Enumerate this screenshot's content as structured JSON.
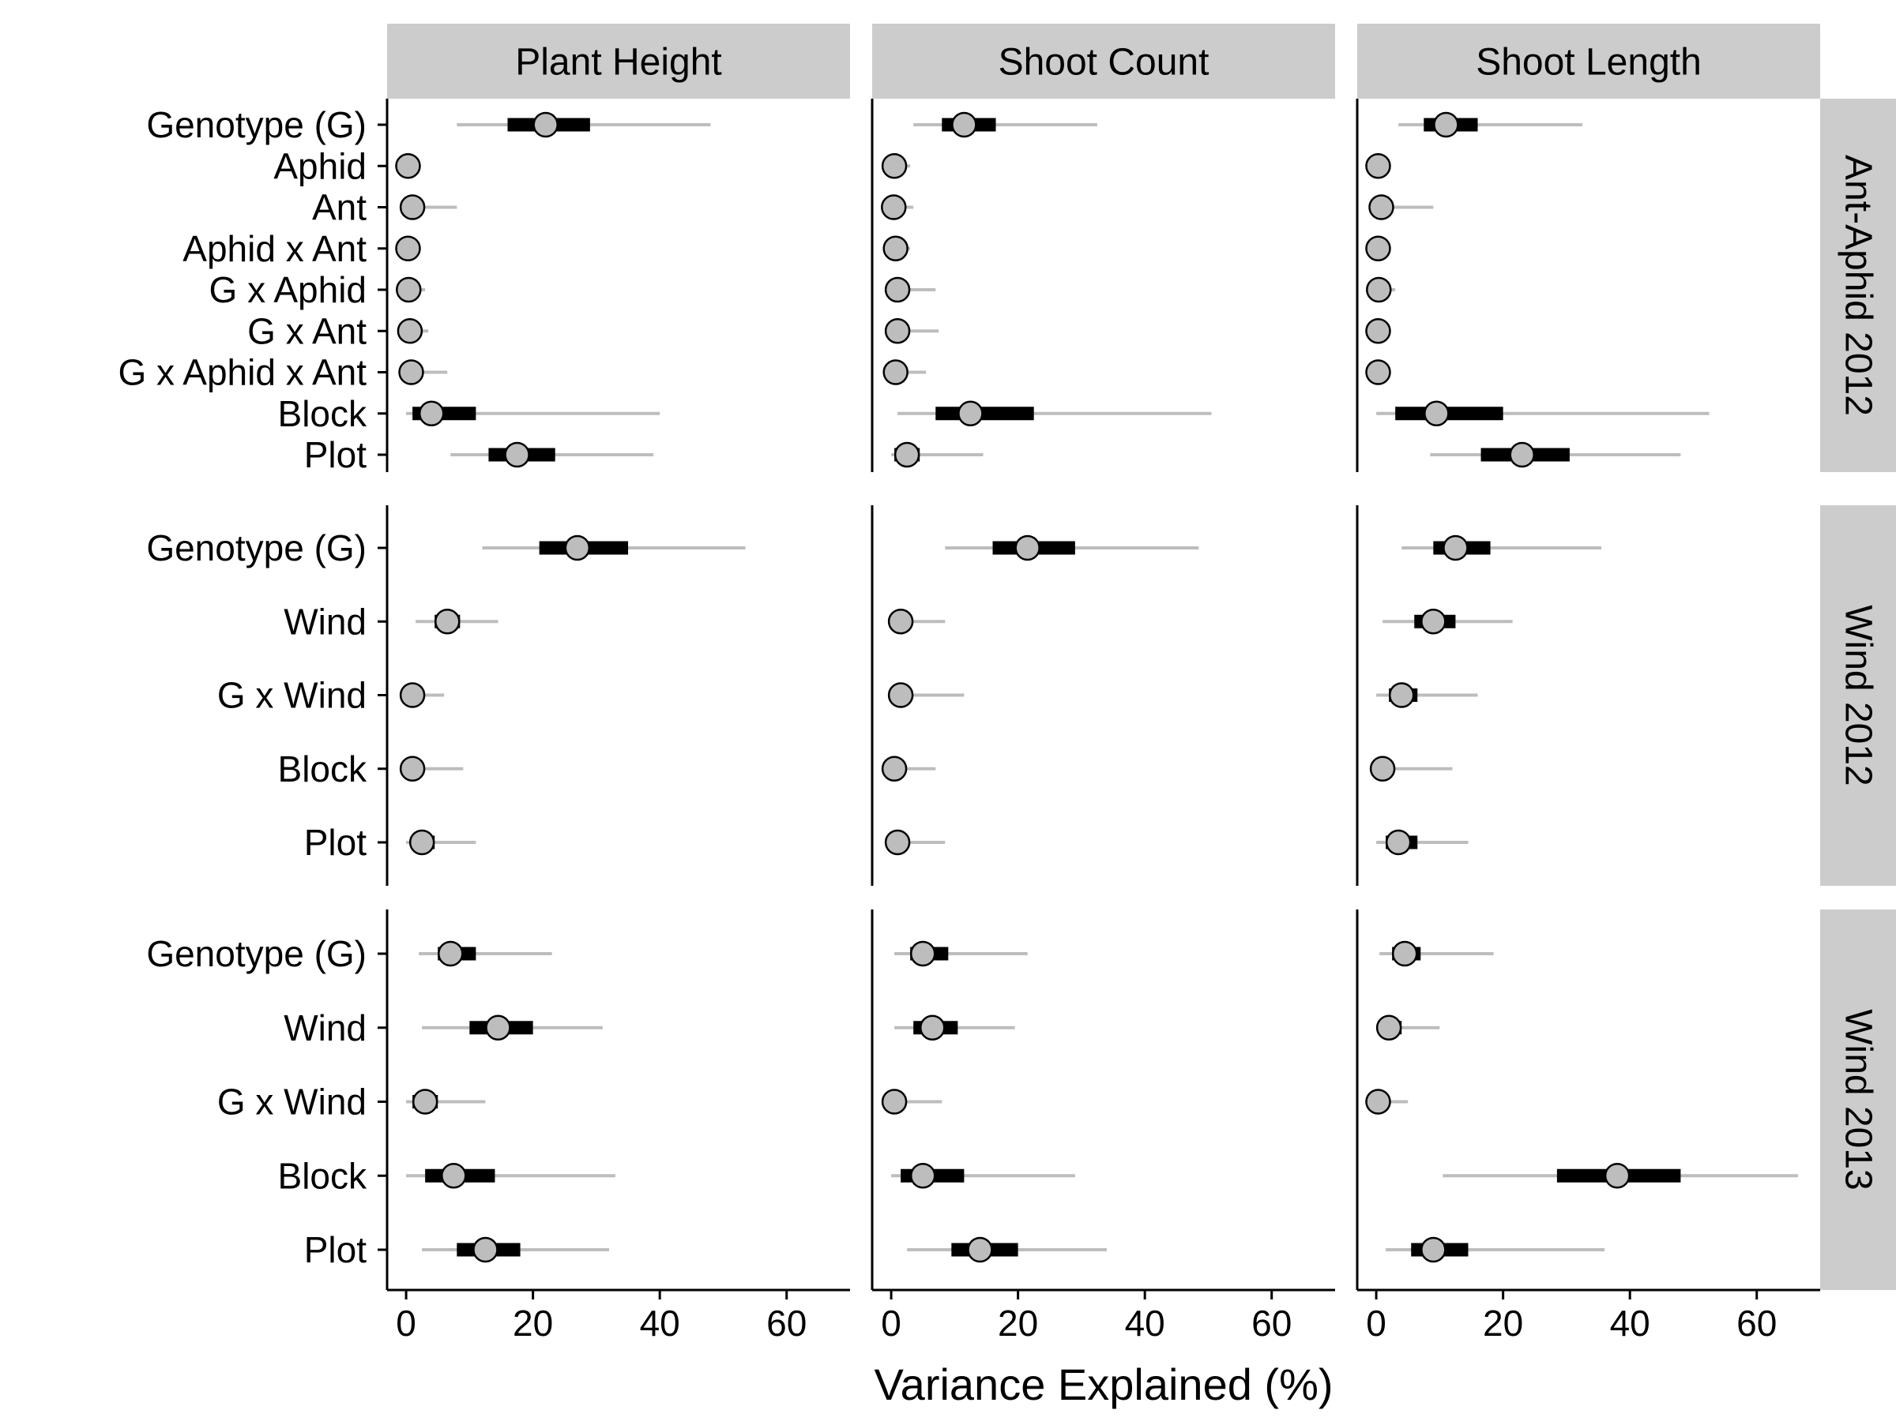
{
  "chart_data": {
    "type": "pointrange",
    "xlabel": "Variance Explained (%)",
    "xlim": [
      -3,
      70
    ],
    "x_ticks": [
      0,
      20,
      40,
      60
    ],
    "x_tick_labels": [
      "0",
      "20",
      "40",
      "60"
    ],
    "columns": [
      "Plant Height",
      "Shoot Count",
      "Shoot Length"
    ],
    "colors": {
      "point_fill": "#bdbdbd",
      "outer_interval": "#bdbdbd",
      "inner_interval": "#000000",
      "strip_bg": "#cccccc"
    },
    "panels_rows": [
      {
        "name": "Ant-Aphid 2012",
        "terms": [
          "Genotype (G)",
          "Aphid",
          "Ant",
          "Aphid x Ant",
          "G x Aphid",
          "G x Ant",
          "G x Aphid x Ant",
          "Block",
          "Plot"
        ],
        "data": {
          "Plant Height": [
            {
              "est": 22,
              "inner": [
                16,
                29
              ],
              "outer": [
                8,
                48
              ]
            },
            {
              "est": 0.3,
              "inner": [
                0,
                0.8
              ],
              "outer": [
                0,
                2
              ]
            },
            {
              "est": 1,
              "inner": [
                0,
                2
              ],
              "outer": [
                0,
                8
              ]
            },
            {
              "est": 0.3,
              "inner": [
                0,
                0.8
              ],
              "outer": [
                0,
                2
              ]
            },
            {
              "est": 0.4,
              "inner": [
                0,
                1
              ],
              "outer": [
                0,
                3
              ]
            },
            {
              "est": 0.6,
              "inner": [
                0,
                1.5
              ],
              "outer": [
                0,
                3.5
              ]
            },
            {
              "est": 0.8,
              "inner": [
                0,
                2
              ],
              "outer": [
                0,
                6.5
              ]
            },
            {
              "est": 4,
              "inner": [
                1,
                11
              ],
              "outer": [
                0,
                40
              ]
            },
            {
              "est": 17.5,
              "inner": [
                13,
                23.5
              ],
              "outer": [
                7,
                39
              ]
            }
          ],
          "Shoot Count": [
            {
              "est": 11.5,
              "inner": [
                8,
                16.5
              ],
              "outer": [
                3.5,
                32.5
              ]
            },
            {
              "est": 0.5,
              "inner": [
                0,
                1
              ],
              "outer": [
                0,
                3
              ]
            },
            {
              "est": 0.4,
              "inner": [
                0,
                1
              ],
              "outer": [
                0,
                3.5
              ]
            },
            {
              "est": 0.7,
              "inner": [
                0,
                1.5
              ],
              "outer": [
                0,
                3
              ]
            },
            {
              "est": 1,
              "inner": [
                0,
                2
              ],
              "outer": [
                0,
                7
              ]
            },
            {
              "est": 1,
              "inner": [
                0,
                2
              ],
              "outer": [
                0,
                7.5
              ]
            },
            {
              "est": 0.7,
              "inner": [
                0,
                1.5
              ],
              "outer": [
                0,
                5.5
              ]
            },
            {
              "est": 12.5,
              "inner": [
                7,
                22.5
              ],
              "outer": [
                1,
                50.5
              ]
            },
            {
              "est": 2.5,
              "inner": [
                0.5,
                4.5
              ],
              "outer": [
                0,
                14.5
              ]
            }
          ],
          "Shoot Length": [
            {
              "est": 11,
              "inner": [
                7.5,
                16
              ],
              "outer": [
                3.5,
                32.5
              ]
            },
            {
              "est": 0.3,
              "inner": [
                0,
                0.8
              ],
              "outer": [
                0,
                2
              ]
            },
            {
              "est": 0.8,
              "inner": [
                0,
                2
              ],
              "outer": [
                0,
                9
              ]
            },
            {
              "est": 0.3,
              "inner": [
                0,
                0.8
              ],
              "outer": [
                0,
                2
              ]
            },
            {
              "est": 0.4,
              "inner": [
                0,
                1
              ],
              "outer": [
                0,
                3
              ]
            },
            {
              "est": 0.3,
              "inner": [
                0,
                0.8
              ],
              "outer": [
                0,
                2
              ]
            },
            {
              "est": 0.3,
              "inner": [
                0,
                0.8
              ],
              "outer": [
                0,
                2
              ]
            },
            {
              "est": 9.5,
              "inner": [
                3,
                20
              ],
              "outer": [
                0,
                52.5
              ]
            },
            {
              "est": 23,
              "inner": [
                16.5,
                30.5
              ],
              "outer": [
                8.5,
                48
              ]
            }
          ]
        }
      },
      {
        "name": "Wind 2012",
        "terms": [
          "Genotype (G)",
          "Wind",
          "G x Wind",
          "Block",
          "Plot"
        ],
        "data": {
          "Plant Height": [
            {
              "est": 27,
              "inner": [
                21,
                35
              ],
              "outer": [
                12,
                53.5
              ]
            },
            {
              "est": 6.5,
              "inner": [
                4.5,
                8.5
              ],
              "outer": [
                1.5,
                14.5
              ]
            },
            {
              "est": 1,
              "inner": [
                0,
                2
              ],
              "outer": [
                0,
                6
              ]
            },
            {
              "est": 1,
              "inner": [
                0,
                2
              ],
              "outer": [
                0,
                9
              ]
            },
            {
              "est": 2.5,
              "inner": [
                1,
                4.5
              ],
              "outer": [
                0,
                11
              ]
            }
          ],
          "Shoot Count": [
            {
              "est": 21.5,
              "inner": [
                16,
                29
              ],
              "outer": [
                8.5,
                48.5
              ]
            },
            {
              "est": 1.5,
              "inner": [
                0.5,
                3
              ],
              "outer": [
                0,
                8.5
              ]
            },
            {
              "est": 1.5,
              "inner": [
                0.5,
                3
              ],
              "outer": [
                0,
                11.5
              ]
            },
            {
              "est": 0.5,
              "inner": [
                0,
                1.5
              ],
              "outer": [
                0,
                7
              ]
            },
            {
              "est": 1,
              "inner": [
                0,
                2
              ],
              "outer": [
                0,
                8.5
              ]
            }
          ],
          "Shoot Length": [
            {
              "est": 12.5,
              "inner": [
                9,
                18
              ],
              "outer": [
                4,
                35.5
              ]
            },
            {
              "est": 9,
              "inner": [
                6,
                12.5
              ],
              "outer": [
                1,
                21.5
              ]
            },
            {
              "est": 4,
              "inner": [
                2,
                6.5
              ],
              "outer": [
                0,
                16
              ]
            },
            {
              "est": 1,
              "inner": [
                0,
                2.5
              ],
              "outer": [
                0,
                12
              ]
            },
            {
              "est": 3.5,
              "inner": [
                1.5,
                6.5
              ],
              "outer": [
                0,
                14.5
              ]
            }
          ]
        }
      },
      {
        "name": "Wind 2013",
        "terms": [
          "Genotype (G)",
          "Wind",
          "G x Wind",
          "Block",
          "Plot"
        ],
        "data": {
          "Plant Height": [
            {
              "est": 7,
              "inner": [
                5,
                11
              ],
              "outer": [
                2,
                23
              ]
            },
            {
              "est": 14.5,
              "inner": [
                10,
                20
              ],
              "outer": [
                2.5,
                31
              ]
            },
            {
              "est": 3,
              "inner": [
                1,
                5
              ],
              "outer": [
                0,
                12.5
              ]
            },
            {
              "est": 7.5,
              "inner": [
                3,
                14
              ],
              "outer": [
                0,
                33
              ]
            },
            {
              "est": 12.5,
              "inner": [
                8,
                18
              ],
              "outer": [
                2.5,
                32
              ]
            }
          ],
          "Shoot Count": [
            {
              "est": 5,
              "inner": [
                3,
                9
              ],
              "outer": [
                0.5,
                21.5
              ]
            },
            {
              "est": 6.5,
              "inner": [
                3.5,
                10.5
              ],
              "outer": [
                0.5,
                19.5
              ]
            },
            {
              "est": 0.5,
              "inner": [
                0,
                2
              ],
              "outer": [
                0,
                8
              ]
            },
            {
              "est": 5,
              "inner": [
                1.5,
                11.5
              ],
              "outer": [
                0,
                29
              ]
            },
            {
              "est": 14,
              "inner": [
                9.5,
                20
              ],
              "outer": [
                2.5,
                34
              ]
            }
          ],
          "Shoot Length": [
            {
              "est": 4.5,
              "inner": [
                2.5,
                7
              ],
              "outer": [
                0.5,
                18.5
              ]
            },
            {
              "est": 2,
              "inner": [
                0.5,
                4
              ],
              "outer": [
                0,
                10
              ]
            },
            {
              "est": 0.3,
              "inner": [
                0,
                1
              ],
              "outer": [
                0,
                5
              ]
            },
            {
              "est": 38,
              "inner": [
                28.5,
                48
              ],
              "outer": [
                10.5,
                66.5
              ]
            },
            {
              "est": 9,
              "inner": [
                5.5,
                14.5
              ],
              "outer": [
                1.5,
                36
              ]
            }
          ]
        }
      }
    ]
  }
}
